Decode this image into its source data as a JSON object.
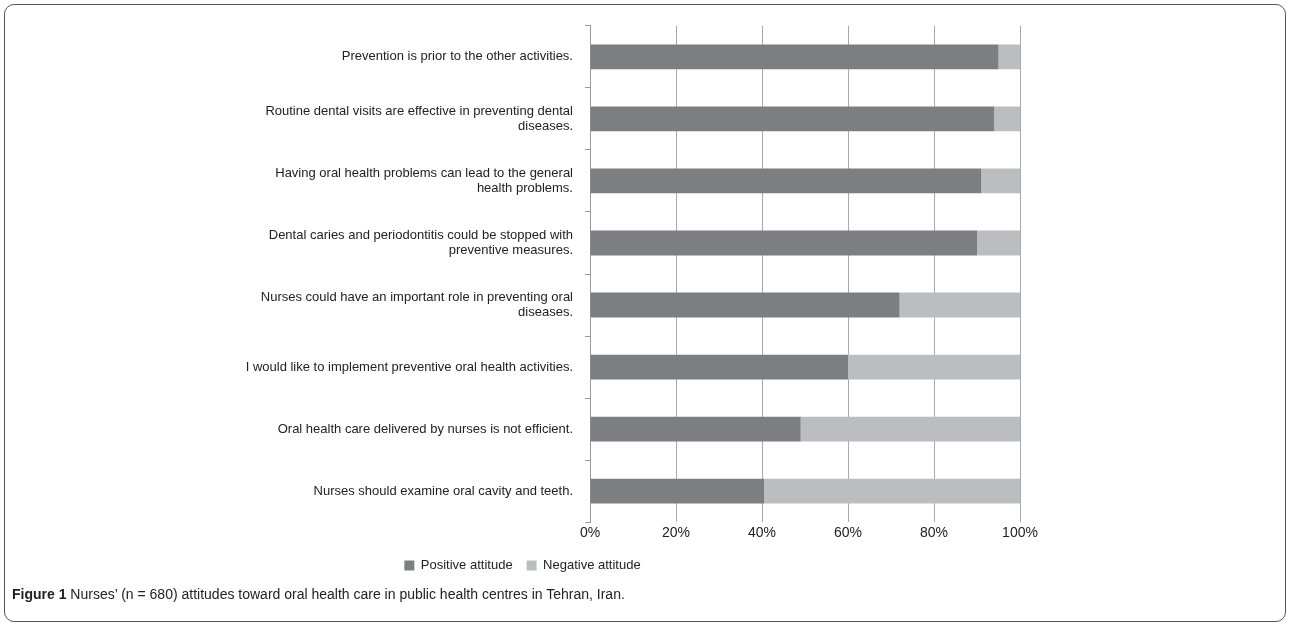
{
  "chart_data": {
    "type": "bar",
    "orientation": "horizontal",
    "stacked": true,
    "categories": [
      "Prevention is prior to the other activities.",
      "Routine dental visits are effective in preventing dental diseases.",
      "Having oral health problems can lead to the general health problems.",
      "Dental caries and periodontitis could be stopped with preventive measures.",
      "Nurses could have an important role in preventing oral diseases.",
      "I would like to implement preventive oral health activities.",
      "Oral health care delivered by nurses is not efficient.",
      "Nurses should examine oral cavity and teeth."
    ],
    "series": [
      {
        "name": "Positive attitude",
        "color": "#7d7e82",
        "values": [
          95,
          94,
          91,
          90,
          72,
          60,
          49,
          40.5
        ]
      },
      {
        "name": "Negative attitude",
        "color": "#bcbdc0",
        "values": [
          5,
          6,
          9,
          10,
          28,
          40,
          51,
          59.5
        ]
      }
    ],
    "xlim": [
      0,
      100
    ],
    "xticks": [
      {
        "value": 0,
        "label": "0%"
      },
      {
        "value": 20,
        "label": "20%"
      },
      {
        "value": 40,
        "label": "40%"
      },
      {
        "value": 60,
        "label": "60%"
      },
      {
        "value": 80,
        "label": "80%"
      },
      {
        "value": 100,
        "label": "100%"
      }
    ],
    "grid": "x",
    "legend": "bottom",
    "annotations": [
      "Figure 1 Nurses’ (n = 680) attitudes toward oral health care in public health centres in Tehran, Iran."
    ]
  }
}
